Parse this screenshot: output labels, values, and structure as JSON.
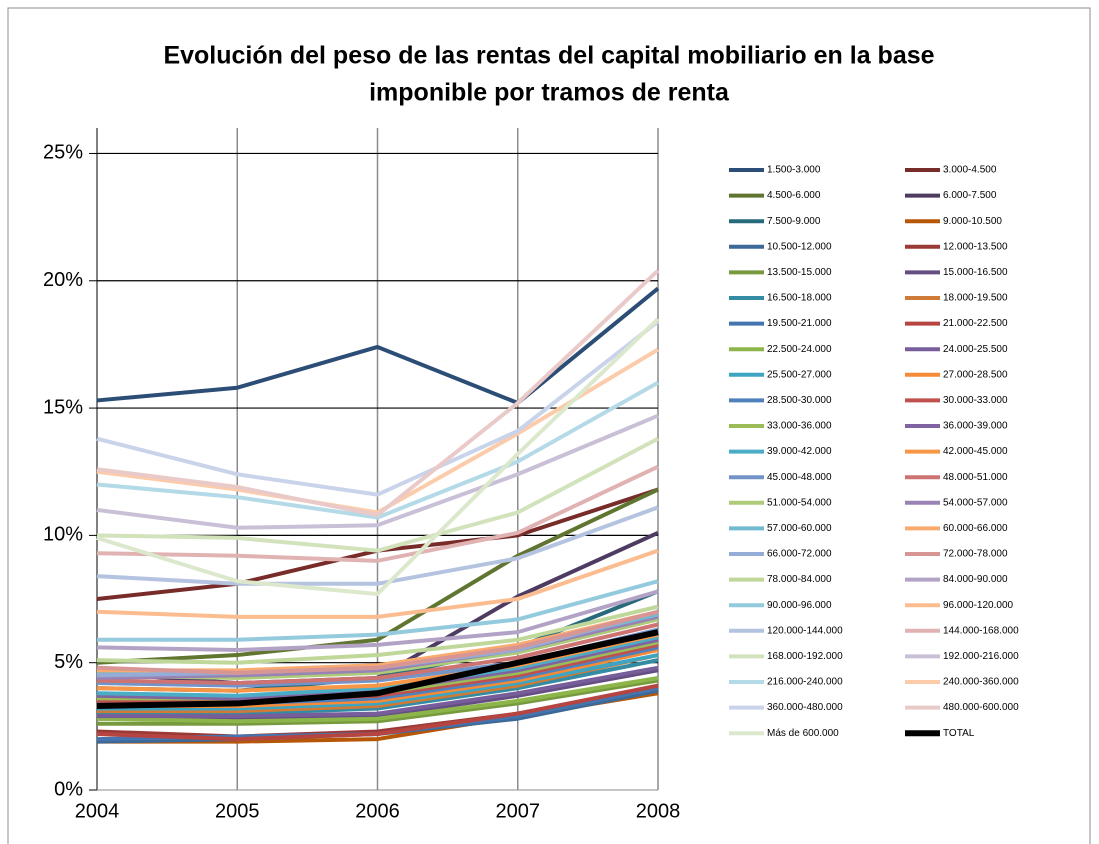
{
  "chart_data": {
    "type": "line",
    "title": [
      "Evolución del peso de las rentas del capital mobiliario en la base",
      "imponible por tramos de renta"
    ],
    "categories": [
      "2004",
      "2005",
      "2006",
      "2007",
      "2008"
    ],
    "ylim": [
      0,
      26
    ],
    "yticks": [
      {
        "value": 0,
        "label": "0%"
      },
      {
        "value": 5,
        "label": "5%"
      },
      {
        "value": 10,
        "label": "10%"
      },
      {
        "value": 15,
        "label": "15%"
      },
      {
        "value": 20,
        "label": "20%"
      },
      {
        "value": 25,
        "label": "25%"
      }
    ],
    "grid": true,
    "legend": "right",
    "series": [
      {
        "name": "1.500-3.000",
        "color": "#2c4d75",
        "values": [
          15.3,
          15.8,
          17.4,
          15.2,
          19.7
        ]
      },
      {
        "name": "3.000-4.500",
        "color": "#772c2a",
        "values": [
          7.5,
          8.1,
          9.4,
          10.0,
          11.8
        ]
      },
      {
        "name": "4.500-6.000",
        "color": "#5f7530",
        "values": [
          5.0,
          5.3,
          5.9,
          9.2,
          11.8
        ]
      },
      {
        "name": "6.000-7.500",
        "color": "#4d3b62",
        "values": [
          4.6,
          4.2,
          4.4,
          7.6,
          10.1
        ]
      },
      {
        "name": "7.500-9.000",
        "color": "#276a7c",
        "values": [
          4.0,
          3.9,
          4.4,
          5.6,
          7.8
        ]
      },
      {
        "name": "9.000-10.500",
        "color": "#b65708",
        "values": [
          1.9,
          1.9,
          2.0,
          2.9,
          3.8
        ]
      },
      {
        "name": "10.500-12.000",
        "color": "#3c6997",
        "values": [
          1.9,
          2.0,
          2.2,
          2.8,
          3.9
        ]
      },
      {
        "name": "12.000-13.500",
        "color": "#9a3a37",
        "values": [
          2.3,
          2.1,
          2.3,
          3.0,
          4.0
        ]
      },
      {
        "name": "13.500-15.000",
        "color": "#789a3f",
        "values": [
          2.6,
          2.6,
          2.7,
          3.4,
          4.3
        ]
      },
      {
        "name": "15.000-16.500",
        "color": "#644e82",
        "values": [
          2.8,
          2.8,
          2.9,
          3.7,
          4.7
        ]
      },
      {
        "name": "16.500-18.000",
        "color": "#338ca3",
        "values": [
          3.0,
          3.0,
          3.2,
          4.0,
          5.1
        ]
      },
      {
        "name": "18.000-19.500",
        "color": "#cf7a37",
        "values": [
          3.1,
          3.1,
          3.3,
          4.1,
          5.3
        ]
      },
      {
        "name": "19.500-21.000",
        "color": "#4575b0",
        "values": [
          2.0,
          2.1,
          2.2,
          2.9,
          4.0
        ]
      },
      {
        "name": "21.000-22.500",
        "color": "#b64541",
        "values": [
          2.2,
          2.0,
          2.2,
          3.0,
          4.1
        ]
      },
      {
        "name": "22.500-24.000",
        "color": "#8db64a",
        "values": [
          2.8,
          2.7,
          2.8,
          3.5,
          4.4
        ]
      },
      {
        "name": "24.000-25.500",
        "color": "#775e9b",
        "values": [
          2.9,
          2.9,
          3.0,
          3.8,
          4.8
        ]
      },
      {
        "name": "25.500-27.000",
        "color": "#3da5c1",
        "values": [
          3.2,
          3.2,
          3.4,
          4.2,
          5.3
        ]
      },
      {
        "name": "27.000-28.500",
        "color": "#f58a37",
        "values": [
          3.3,
          3.3,
          3.5,
          4.3,
          5.5
        ]
      },
      {
        "name": "28.500-30.000",
        "color": "#4f81bd",
        "values": [
          3.4,
          3.4,
          3.6,
          4.4,
          5.6
        ]
      },
      {
        "name": "30.000-33.000",
        "color": "#c0504d",
        "values": [
          3.5,
          3.5,
          3.7,
          4.5,
          5.7
        ]
      },
      {
        "name": "33.000-36.000",
        "color": "#9bbb59",
        "values": [
          3.6,
          3.6,
          3.8,
          4.6,
          5.8
        ]
      },
      {
        "name": "36.000-39.000",
        "color": "#8064a2",
        "values": [
          3.7,
          3.6,
          3.9,
          4.7,
          5.9
        ]
      },
      {
        "name": "39.000-42.000",
        "color": "#4bacc6",
        "values": [
          3.8,
          3.7,
          4.0,
          4.8,
          6.0
        ]
      },
      {
        "name": "42.000-45.000",
        "color": "#f79646",
        "values": [
          4.0,
          3.9,
          4.1,
          4.9,
          6.1
        ]
      },
      {
        "name": "45.000-48.000",
        "color": "#7394c9",
        "values": [
          4.2,
          4.1,
          4.3,
          5.0,
          6.3
        ]
      },
      {
        "name": "48.000-51.000",
        "color": "#cd7371",
        "values": [
          4.3,
          4.2,
          4.4,
          5.2,
          6.5
        ]
      },
      {
        "name": "51.000-54.000",
        "color": "#aecb79",
        "values": [
          4.5,
          4.4,
          4.6,
          5.4,
          6.7
        ]
      },
      {
        "name": "54.000-57.000",
        "color": "#9883b4",
        "values": [
          4.4,
          4.5,
          4.7,
          5.5,
          6.8
        ]
      },
      {
        "name": "57.000-60.000",
        "color": "#71bbd2",
        "values": [
          4.6,
          4.6,
          4.8,
          5.6,
          6.9
        ]
      },
      {
        "name": "60.000-66.000",
        "color": "#f9aa6f",
        "values": [
          4.7,
          4.7,
          4.9,
          5.7,
          7.0
        ]
      },
      {
        "name": "66.000-72.000",
        "color": "#95acd6",
        "values": [
          4.5,
          4.6,
          4.8,
          5.5,
          7.0
        ]
      },
      {
        "name": "72.000-78.000",
        "color": "#d79593",
        "values": [
          4.8,
          4.6,
          4.8,
          5.6,
          7.0
        ]
      },
      {
        "name": "78.000-84.000",
        "color": "#c0d79a",
        "values": [
          5.1,
          5.0,
          5.3,
          5.9,
          7.2
        ]
      },
      {
        "name": "84.000-90.000",
        "color": "#b2a3c6",
        "values": [
          5.6,
          5.5,
          5.7,
          6.2,
          7.8
        ]
      },
      {
        "name": "90.000-96.000",
        "color": "#94cadd",
        "values": [
          5.9,
          5.9,
          6.1,
          6.7,
          8.2
        ]
      },
      {
        "name": "96.000-120.000",
        "color": "#fbbc8f",
        "values": [
          7.0,
          6.8,
          6.8,
          7.5,
          9.4
        ]
      },
      {
        "name": "120.000-144.000",
        "color": "#b4c3e0",
        "values": [
          8.4,
          8.1,
          8.1,
          9.1,
          11.1
        ]
      },
      {
        "name": "144.000-168.000",
        "color": "#e0b3b2",
        "values": [
          9.3,
          9.2,
          9.0,
          10.1,
          12.7
        ]
      },
      {
        "name": "168.000-192.000",
        "color": "#d2e2bb",
        "values": [
          10.0,
          9.9,
          9.4,
          10.9,
          13.8
        ]
      },
      {
        "name": "192.000-216.000",
        "color": "#c9bfd7",
        "values": [
          11.0,
          10.3,
          10.4,
          12.4,
          14.7
        ]
      },
      {
        "name": "216.000-240.000",
        "color": "#b4d9e7",
        "values": [
          12.0,
          11.5,
          10.7,
          12.9,
          16.0
        ]
      },
      {
        "name": "240.000-360.000",
        "color": "#fccbaa",
        "values": [
          12.5,
          11.8,
          10.9,
          14.0,
          17.3
        ]
      },
      {
        "name": "360.000-480.000",
        "color": "#c9d3e9",
        "values": [
          13.8,
          12.4,
          11.6,
          14.1,
          18.4
        ]
      },
      {
        "name": "480.000-600.000",
        "color": "#e9cac9",
        "values": [
          12.6,
          11.9,
          10.8,
          15.2,
          20.4
        ]
      },
      {
        "name": "Más de 600.000",
        "color": "#dce8cc",
        "values": [
          9.9,
          8.2,
          7.7,
          13.2,
          18.5
        ]
      },
      {
        "name": "TOTAL",
        "color": "#000000",
        "values": [
          3.3,
          3.4,
          3.8,
          5.0,
          6.2
        ]
      }
    ]
  }
}
